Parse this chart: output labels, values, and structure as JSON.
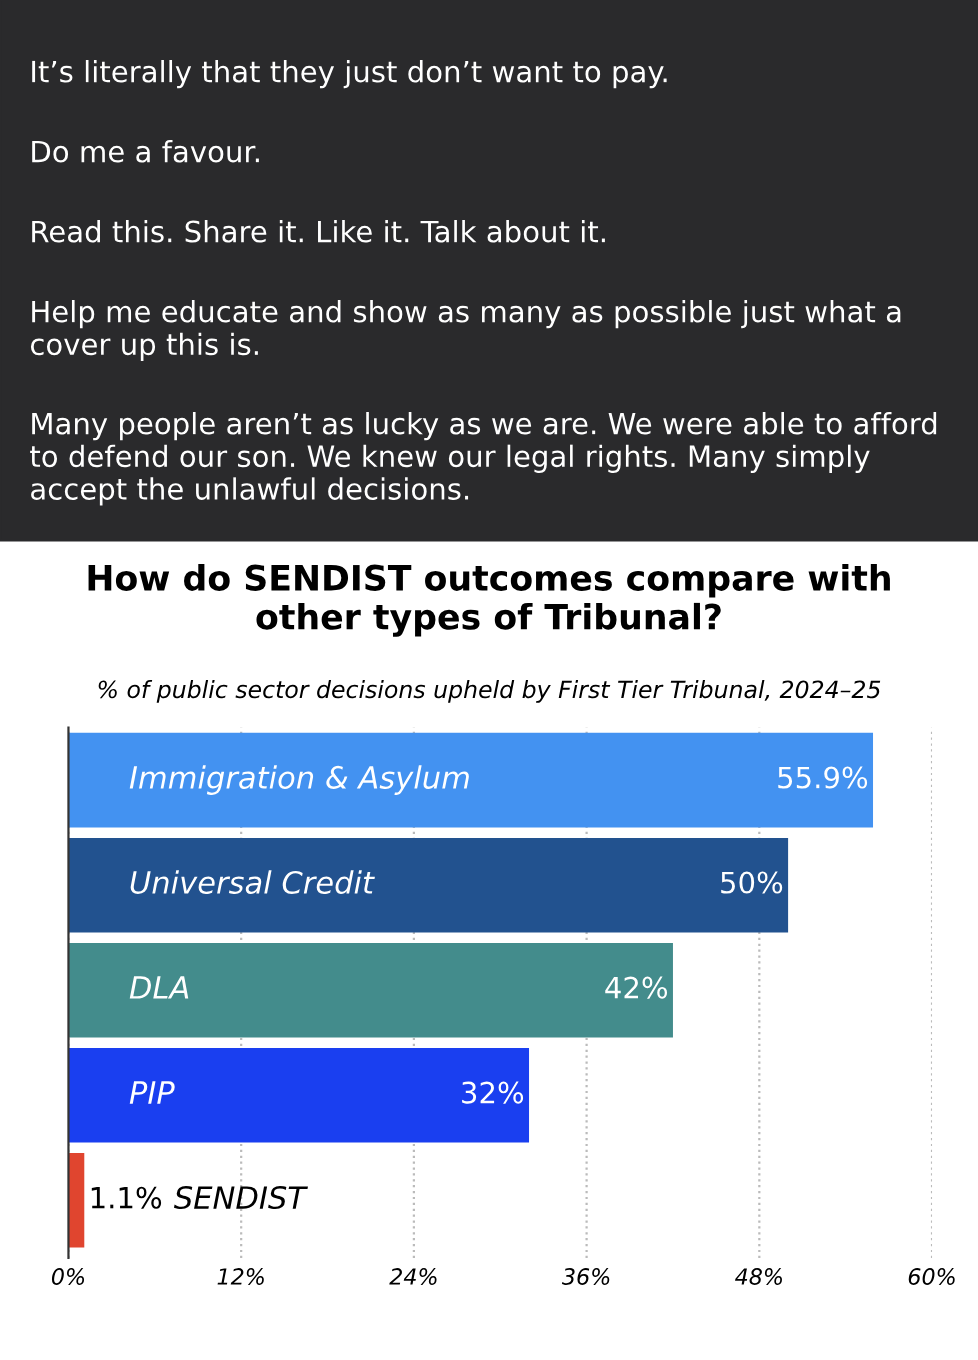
{
  "chart_data": {
    "type": "bar",
    "orientation": "horizontal",
    "title": "How do SENDIST outcomes compare with\nother types of Tribunal?",
    "subtitle": "% of public sector decisions upheld by First Tier Tribunal, 2024–25",
    "categories": [
      "Immigration & Asylum",
      "Universal Credit",
      "DLA",
      "PIP",
      "SENDIST"
    ],
    "values": [
      55.9,
      50,
      42,
      32,
      1.1
    ],
    "colors": [
      "#4392f1",
      "#22528f",
      "#438c8c",
      "#1a3ff0",
      "#e0452f"
    ],
    "value_labels": [
      "55.9%",
      "50%",
      "42%",
      "32%",
      "1.1%"
    ],
    "xlim": [
      0,
      60
    ],
    "xticks": [
      {
        "value": 0,
        "label": "0%"
      },
      {
        "value": 12,
        "label": "12%"
      },
      {
        "value": 24,
        "label": "24%"
      },
      {
        "value": 36,
        "label": "36%"
      },
      {
        "value": 48,
        "label": "48%"
      },
      {
        "value": 60,
        "label": "60%"
      }
    ],
    "grid": "x",
    "annotations": [
      "It’s literally that they just don’t want to pay.",
      "Do me a favour.",
      "Read this. Share it. Like it. Talk about it.",
      "Help me educate and show as many as possible just what a cover up this is.",
      "Many people aren’t as lucky as we are. We were able to afford to defend our son. We knew our legal rights. Many simply accept the unlawful decisions."
    ]
  }
}
